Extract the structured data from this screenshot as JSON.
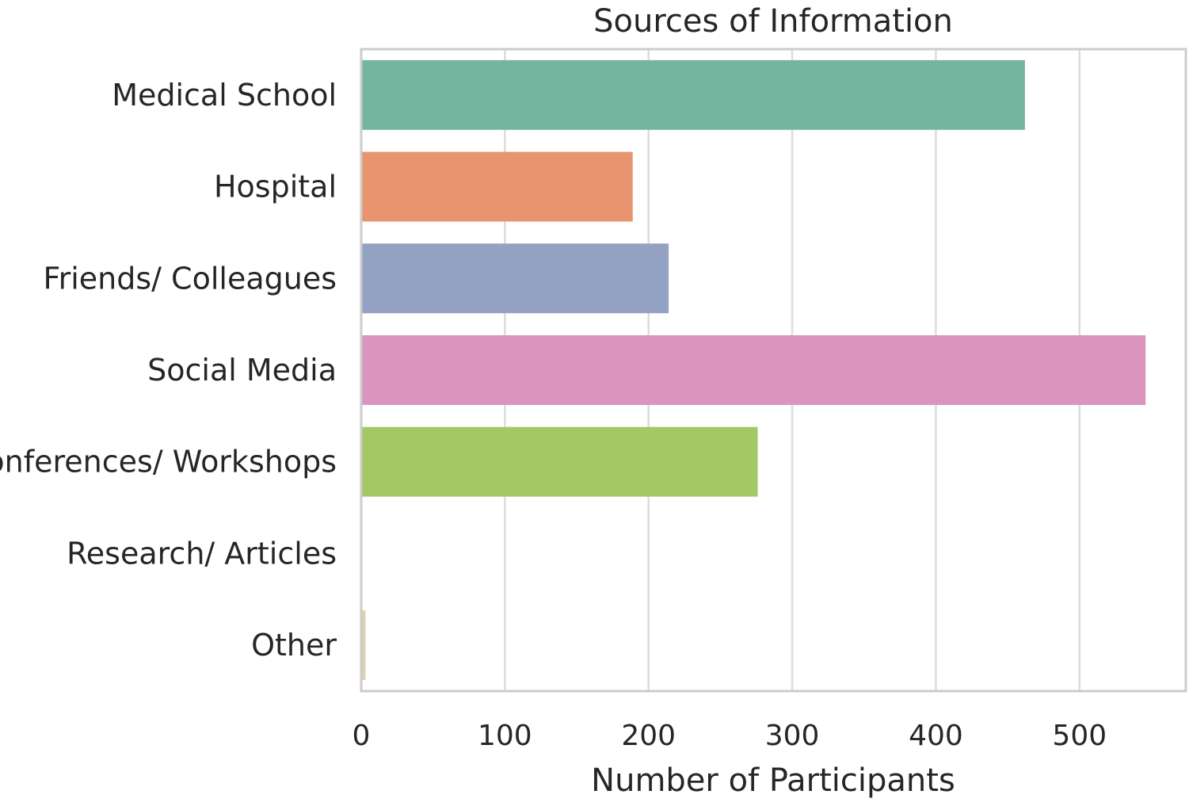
{
  "chart_data": {
    "type": "bar",
    "orientation": "horizontal",
    "title": "Sources of Information",
    "xlabel": "Number of Participants",
    "ylabel": "",
    "categories": [
      "Medical School",
      "Hospital",
      "Friends/ Colleagues",
      "Social Media",
      "Conferences/ Workshops",
      "Research/ Articles",
      "Other"
    ],
    "values": [
      462,
      189,
      214,
      546,
      276,
      0,
      3
    ],
    "colors": [
      "#73b59f",
      "#e8956f",
      "#93a2c3",
      "#da95bf",
      "#a3c866",
      "#f2d95c",
      "#ddd0b3"
    ],
    "xlim": [
      0,
      574
    ],
    "xticks": [
      0,
      100,
      200,
      300,
      400,
      500
    ],
    "grid": "vertical",
    "legend": "none"
  }
}
